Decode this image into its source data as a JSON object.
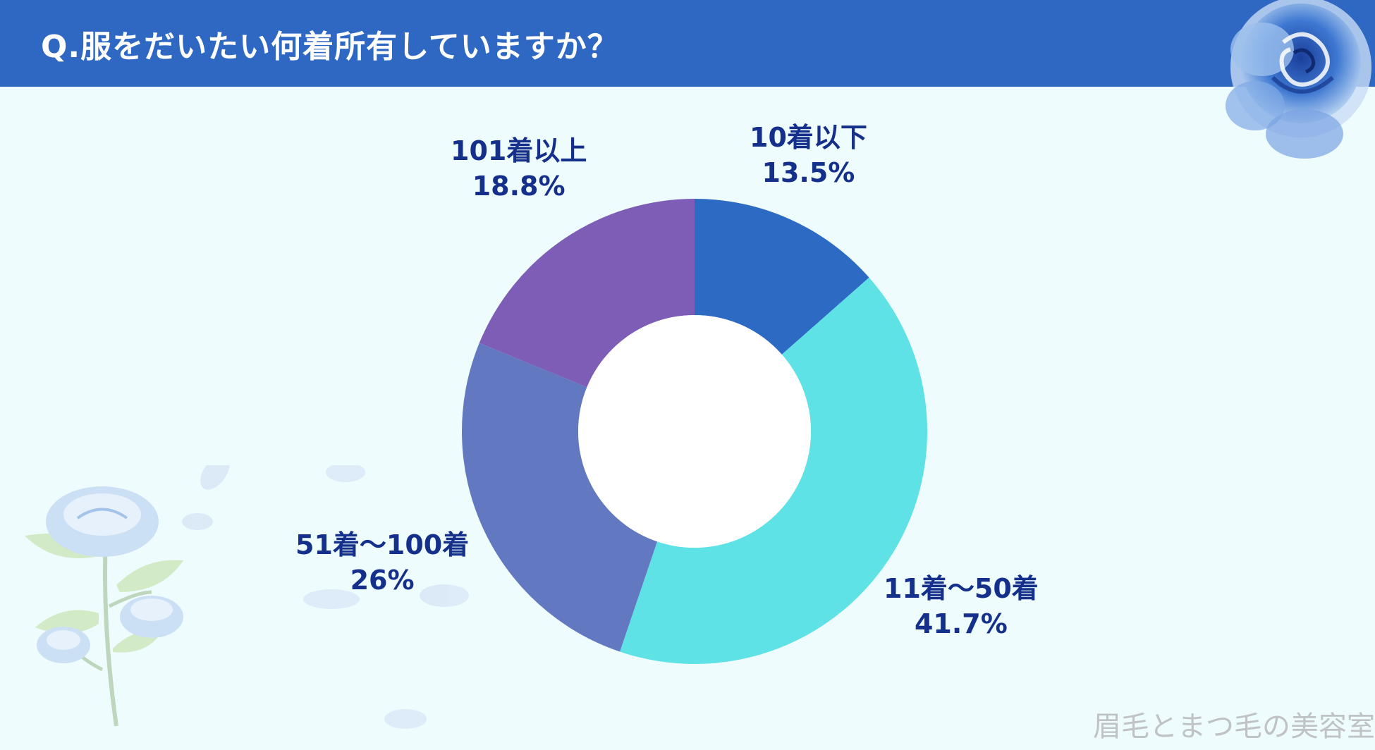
{
  "header": {
    "title": "Q.服をだいたい何着所有していますか？"
  },
  "chart_data": {
    "type": "pie",
    "donut": true,
    "title": "Q.服をだいたい何着所有していますか？",
    "categories": [
      "10着以下",
      "11着～50着",
      "51着～100着",
      "101着以上"
    ],
    "values": [
      13.5,
      41.7,
      26,
      18.8
    ],
    "value_labels": [
      "13.5%",
      "41.7%",
      "26%",
      "18.8%"
    ],
    "colors": [
      "#2d6ac3",
      "#5ee2e6",
      "#6279c2",
      "#7d5db5"
    ],
    "label_color": "#14308a",
    "start_angle": "12 o'clock",
    "direction": "clockwise"
  },
  "watermark": "眉毛とまつ毛の美容室",
  "decorations": {
    "top_right": "blue-rose-icon",
    "bottom_left": "white-rose-branch-icon"
  }
}
